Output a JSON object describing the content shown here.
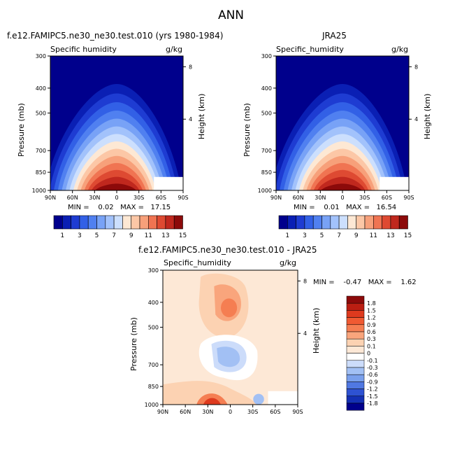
{
  "figure_title": "ANN",
  "panels": [
    {
      "title": "f.e12.FAMIPC5.ne30_ne30.test.010 (yrs 1980-1984)",
      "left_label": "Specific humidity",
      "right_label": "g/kg",
      "ylabel": "Pressure (mb)",
      "right_axis_label": "Height (km)",
      "stats": "MIN =    0.02   MAX =   17.15"
    },
    {
      "title": "JRA25",
      "left_label": "Specific_humidity",
      "right_label": "g/kg",
      "ylabel": "Pressure (mb)",
      "right_axis_label": "Height (km)",
      "stats": "MIN =    0.01   MAX =   16.54"
    },
    {
      "title": "f.e12.FAMIPC5.ne30_ne30.test.010 - JRA25",
      "left_label": "Specific_humidity",
      "right_label": "g/kg",
      "ylabel": "Pressure (mb)",
      "right_axis_label": "Height (km)",
      "stats": "MIN =    -0.47   MAX =    1.62"
    }
  ],
  "chart_data": [
    {
      "type": "heatmap",
      "title": "f.e12.FAMIPC5.ne30_ne30.test.010 (yrs 1980-1984)",
      "x_ticks": [
        "90N",
        "60N",
        "30N",
        "0",
        "30S",
        "60S",
        "90S"
      ],
      "y_ticks": [
        "300",
        "400",
        "500",
        "700",
        "850",
        "1000"
      ],
      "y_ticks_right": [
        "8",
        "4"
      ],
      "ylabel": "Pressure (mb)",
      "y2label": "Height (km)",
      "variable": "Specific humidity",
      "units": "g/kg",
      "min": 0.02,
      "max": 17.15,
      "levels": [
        1,
        2,
        3,
        4,
        5,
        6,
        7,
        8,
        9,
        10,
        11,
        12,
        13,
        14,
        15
      ],
      "colorbar_labels": [
        "1",
        "3",
        "5",
        "7",
        "9",
        "11",
        "13",
        "15"
      ]
    },
    {
      "type": "heatmap",
      "title": "JRA25",
      "x_ticks": [
        "90N",
        "60N",
        "30N",
        "0",
        "30S",
        "60S",
        "90S"
      ],
      "y_ticks": [
        "300",
        "400",
        "500",
        "700",
        "850",
        "1000"
      ],
      "y_ticks_right": [
        "8",
        "4"
      ],
      "ylabel": "Pressure (mb)",
      "y2label": "Height (km)",
      "variable": "Specific_humidity",
      "units": "g/kg",
      "min": 0.01,
      "max": 16.54,
      "levels": [
        1,
        2,
        3,
        4,
        5,
        6,
        7,
        8,
        9,
        10,
        11,
        12,
        13,
        14,
        15
      ],
      "colorbar_labels": [
        "1",
        "3",
        "5",
        "7",
        "9",
        "11",
        "13",
        "15"
      ]
    },
    {
      "type": "heatmap",
      "title": "f.e12.FAMIPC5.ne30_ne30.test.010 - JRA25",
      "x_ticks": [
        "90N",
        "60N",
        "30N",
        "0",
        "30S",
        "60S",
        "90S"
      ],
      "y_ticks": [
        "300",
        "400",
        "500",
        "700",
        "850",
        "1000"
      ],
      "y_ticks_right": [
        "8",
        "4"
      ],
      "ylabel": "Pressure (mb)",
      "y2label": "Height (km)",
      "variable": "Specific_humidity",
      "units": "g/kg",
      "min": -0.47,
      "max": 1.62,
      "colorbar_labels": [
        "1.8",
        "1.5",
        "1.2",
        "0.9",
        "0.6",
        "0.3",
        "0.1",
        "0",
        "-0.1",
        "-0.3",
        "-0.6",
        "-0.9",
        "-1.2",
        "-1.5",
        "-1.8"
      ]
    }
  ],
  "colors": {
    "abs_scale": [
      "#00008c",
      "#0a1fb4",
      "#1e3cd2",
      "#3260e6",
      "#5080f0",
      "#78a2f6",
      "#a2c2fb",
      "#ccdffd",
      "#fde8d4",
      "#fcc7a6",
      "#f7a07a",
      "#f07452",
      "#de4a32",
      "#c0281e",
      "#8c0a0a"
    ],
    "diff_scale": [
      "#8c0a0a",
      "#bb1e12",
      "#de3a1e",
      "#f05a32",
      "#f57e52",
      "#f9a57c",
      "#fcd2b2",
      "#fde8d6",
      "#ffffff",
      "#ccdcfa",
      "#a2c0f4",
      "#7aa0ec",
      "#5078e2",
      "#2e52d2",
      "#1430b4",
      "#00008c"
    ]
  }
}
